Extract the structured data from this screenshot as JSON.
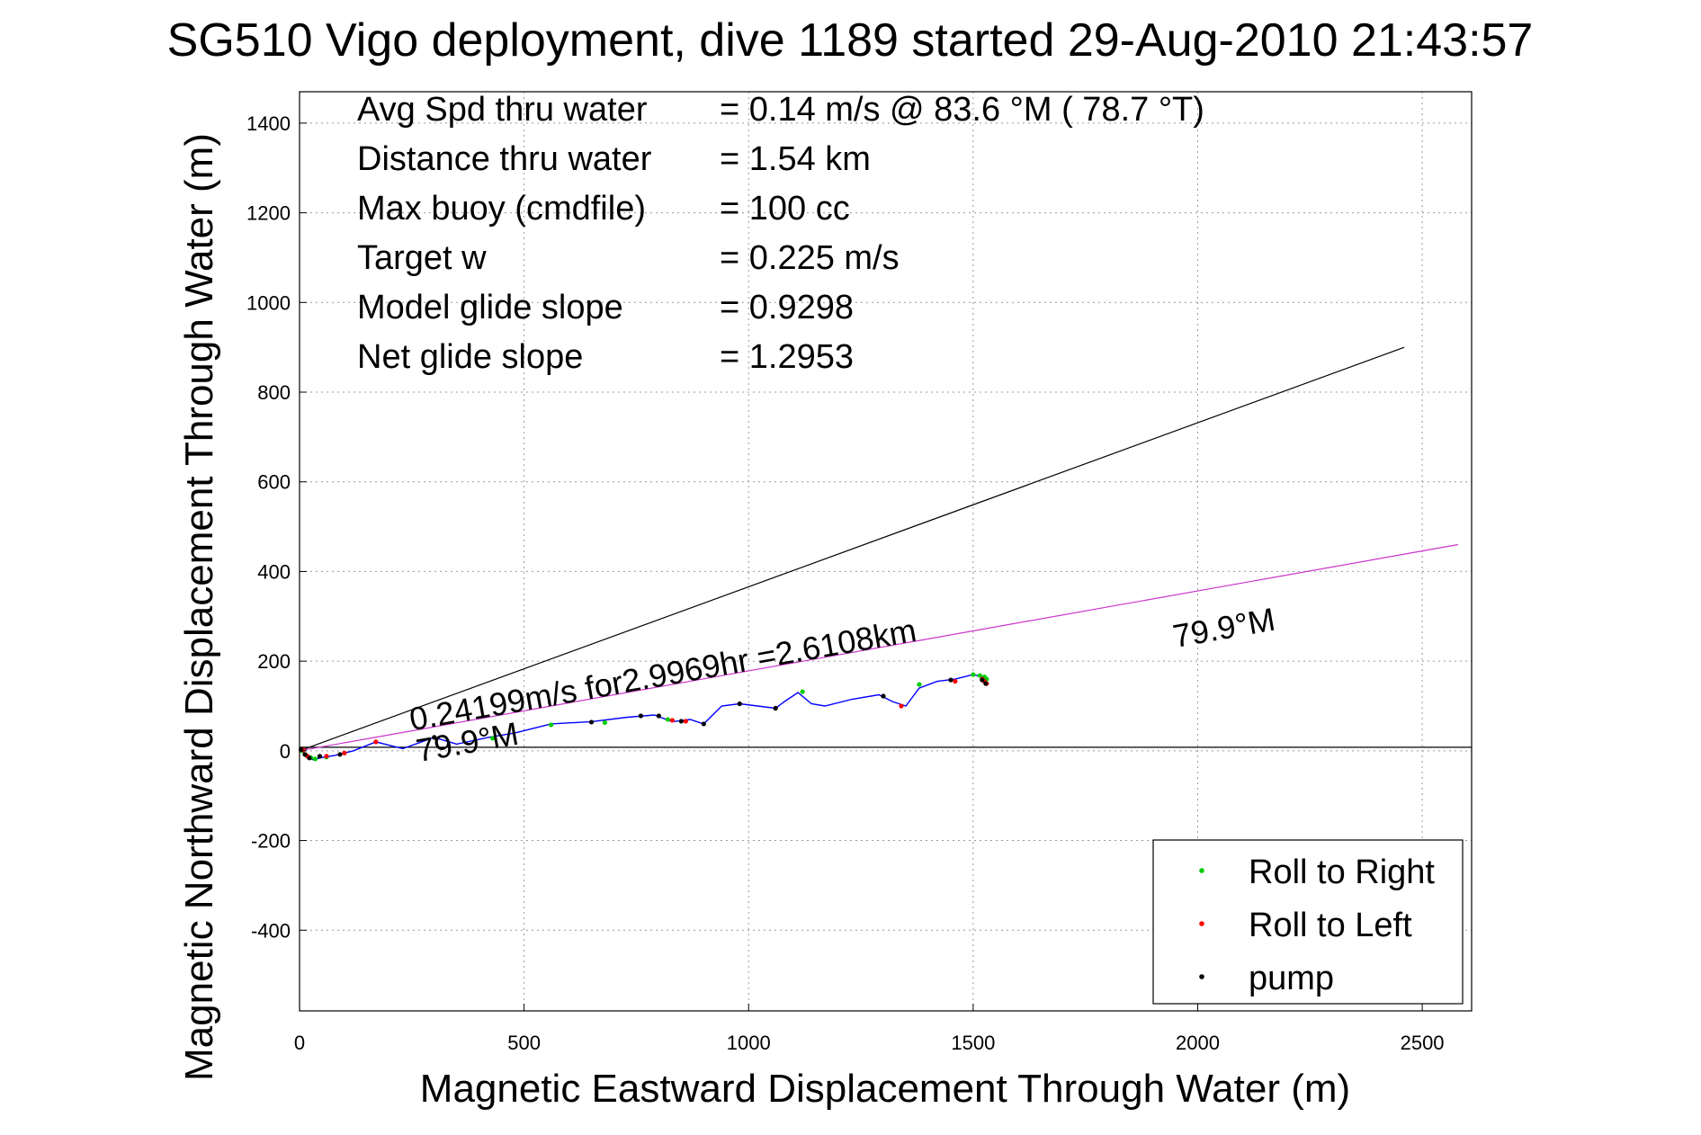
{
  "chart_data": {
    "type": "line",
    "title": "SG510 Vigo deployment, dive 1189 started 29-Aug-2010 21:43:57",
    "xlabel": "Magnetic Eastward Displacement Through Water (m)",
    "ylabel": "Magnetic Northward Displacement Through Water (m)",
    "xlim": [
      0,
      2610
    ],
    "ylim": [
      -580,
      1470
    ],
    "xticks": [
      0,
      500,
      1000,
      1500,
      2000,
      2500
    ],
    "yticks": [
      -400,
      -200,
      0,
      200,
      400,
      600,
      800,
      1000,
      1200,
      1400
    ],
    "grid": true,
    "legend_position": "bottom-right",
    "legend": [
      {
        "label": "Roll to Right",
        "color": "#00cc00"
      },
      {
        "label": "Roll to Left",
        "color": "#ff0000"
      },
      {
        "label": "pump",
        "color": "#000000"
      }
    ],
    "info_lines": [
      {
        "label": "Avg Spd thru water",
        "value": "=  0.14 m/s @  83.6 °M ( 78.7 °T)"
      },
      {
        "label": "Distance thru water",
        "value": "=  1.54 km"
      },
      {
        "label": "Max buoy (cmdfile)",
        "value": "= 100 cc"
      },
      {
        "label": "Target w",
        "value": "= 0.225 m/s"
      },
      {
        "label": "Model glide slope",
        "value": "= 0.9298"
      },
      {
        "label": "Net glide slope",
        "value": "= 1.2953"
      }
    ],
    "annotations": [
      {
        "text": "0.24199m/s for2.9969hr =2.6108km",
        "x": 250,
        "y": 45,
        "color": "#000000"
      },
      {
        "text": "79.9°M",
        "x": 265,
        "y": -25,
        "color": "#000000"
      },
      {
        "text": "79.9°M",
        "x": 1950,
        "y": 230,
        "color": "#000000"
      }
    ],
    "series": [
      {
        "role": "reference-line",
        "color": "#000000",
        "x": [
          0,
          2460
        ],
        "y": [
          0,
          900
        ]
      },
      {
        "role": "reference-line",
        "color": "#000000",
        "x": [
          0,
          2610
        ],
        "y": [
          8,
          8
        ]
      },
      {
        "role": "reference-line",
        "color": "#cc33cc",
        "x": [
          0,
          2580
        ],
        "y": [
          0,
          460
        ]
      },
      {
        "role": "track",
        "color": "#0000ff",
        "x": [
          0,
          10,
          20,
          30,
          50,
          80,
          120,
          170,
          230,
          300,
          350,
          420,
          480,
          560,
          650,
          730,
          790,
          830,
          870,
          900,
          940,
          980,
          1020,
          1060,
          1080,
          1110,
          1140,
          1170,
          1230,
          1290,
          1320,
          1350,
          1380,
          1420,
          1460,
          1500,
          1520,
          1530
        ],
        "y": [
          5,
          -5,
          -15,
          -20,
          -15,
          -10,
          0,
          20,
          5,
          30,
          15,
          30,
          40,
          60,
          65,
          75,
          80,
          65,
          70,
          60,
          100,
          105,
          100,
          95,
          110,
          130,
          105,
          100,
          115,
          125,
          110,
          100,
          140,
          155,
          160,
          170,
          165,
          160
        ]
      }
    ],
    "markers": {
      "roll_right": {
        "color": "#00cc00",
        "x": [
          5,
          15,
          25,
          35,
          60,
          430,
          560,
          680,
          820,
          1120,
          1380,
          1500,
          1515,
          1525,
          1530
        ],
        "y": [
          0,
          -10,
          -15,
          -18,
          -14,
          28,
          58,
          63,
          70,
          132,
          148,
          170,
          168,
          165,
          160
        ]
      },
      "roll_left": {
        "color": "#ff0000",
        "x": [
          8,
          18,
          60,
          100,
          170,
          830,
          860,
          1060,
          1340,
          1460,
          1520,
          1525,
          1530
        ],
        "y": [
          2,
          -12,
          -12,
          -5,
          20,
          68,
          66,
          95,
          100,
          155,
          160,
          155,
          150
        ]
      },
      "pump": {
        "color": "#000000",
        "x": [
          3,
          12,
          22,
          45,
          90,
          300,
          650,
          760,
          800,
          850,
          900,
          980,
          1060,
          1300,
          1450,
          1520,
          1528
        ],
        "y": [
          3,
          -8,
          -16,
          -12,
          -8,
          30,
          64,
          78,
          78,
          66,
          60,
          105,
          95,
          122,
          158,
          158,
          150
        ]
      }
    }
  }
}
